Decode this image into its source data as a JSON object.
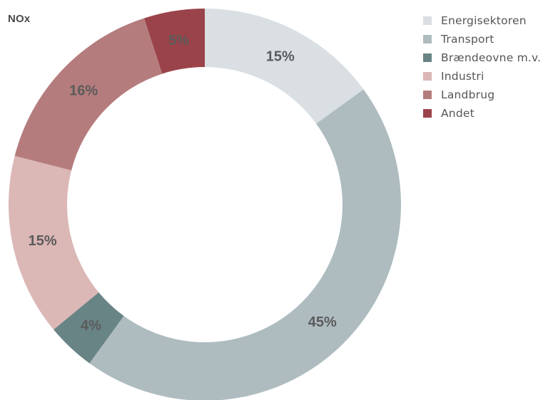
{
  "chart_data": {
    "type": "pie",
    "title": "NOx",
    "categories": [
      "Energisektoren",
      "Transport",
      "Brændeovne m.v.",
      "Industri",
      "Landbrug",
      "Andet"
    ],
    "values": [
      15,
      45,
      4,
      15,
      16,
      5
    ],
    "labels": [
      "15%",
      "45%",
      "4%",
      "15%",
      "16%",
      "5%"
    ],
    "colors": [
      "#d9dfe2",
      "#aebcc0",
      "#688485",
      "#dbb7b6",
      "#b57c7d",
      "#9b434a"
    ],
    "legend_position": "top-right"
  }
}
